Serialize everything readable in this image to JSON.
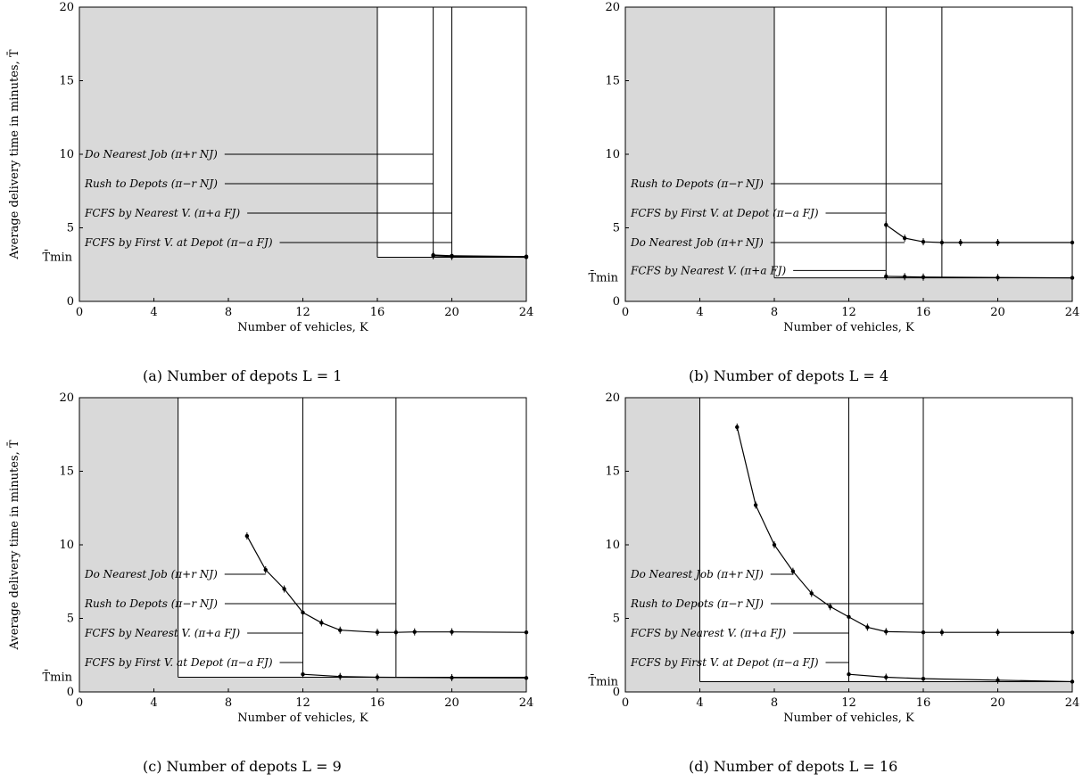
{
  "chart_data": [
    {
      "type": "line",
      "caption": "(a) Number of depots L = 1",
      "xlabel": "Number of vehicles, K",
      "ylabel": "Average delivery time in minutes, T̄",
      "tmin_label": "T̄min",
      "xlim": [
        0,
        24
      ],
      "ylim": [
        0,
        20
      ],
      "xticks": [
        "0",
        "4",
        "8",
        "12",
        "16",
        "20",
        "24"
      ],
      "yticks": [
        "0",
        "5",
        "10",
        "15",
        "20"
      ],
      "shaded_region": {
        "k_below": 16,
        "t_min": 3.0
      },
      "boundaries": [
        16,
        19,
        20
      ],
      "series": [
        {
          "x": [
            19,
            20,
            24
          ],
          "y": [
            3.15,
            3.1,
            3.05
          ]
        },
        {
          "x": [
            19,
            20,
            24
          ],
          "y": [
            3.1,
            3.05,
            3.0
          ]
        }
      ],
      "labels": [
        {
          "text": "Do Nearest Job (π+r NJ)",
          "y": 10.0,
          "to": 19
        },
        {
          "text": "Rush to Depots (π−r NJ)",
          "y": 8.0,
          "to": 19
        },
        {
          "text": "FCFS by Nearest V. (π+a FJ)",
          "y": 6.0,
          "to": 20
        },
        {
          "text": "FCFS by First V. at Depot (π−a FJ)",
          "y": 4.0,
          "to": 20
        }
      ]
    },
    {
      "type": "line",
      "caption": "(b) Number of depots L = 4",
      "xlabel": "Number of vehicles, K",
      "ylabel": "",
      "tmin_label": "T̄min",
      "xlim": [
        0,
        24
      ],
      "ylim": [
        0,
        20
      ],
      "xticks": [
        "0",
        "4",
        "8",
        "12",
        "16",
        "20",
        "24"
      ],
      "yticks": [
        "0",
        "5",
        "10",
        "15",
        "20"
      ],
      "shaded_region": {
        "k_below": 8,
        "t_min": 1.6
      },
      "boundaries": [
        8,
        14,
        17
      ],
      "series": [
        {
          "x": [
            14,
            15,
            16,
            17,
            18,
            20,
            24
          ],
          "y": [
            5.2,
            4.3,
            4.05,
            4.0,
            4.0,
            4.0,
            4.0
          ]
        },
        {
          "x": [
            14,
            15,
            16,
            20,
            24
          ],
          "y": [
            1.7,
            1.68,
            1.65,
            1.62,
            1.6
          ]
        }
      ],
      "labels": [
        {
          "text": "Rush to Depots (π−r NJ)",
          "y": 8.0,
          "to": 17
        },
        {
          "text": "FCFS by First V. at Depot (π−a FJ)",
          "y": 6.0,
          "to": 14
        },
        {
          "text": "Do Nearest Job (π+r NJ)",
          "y": 4.0,
          "to": 15
        },
        {
          "text": "FCFS by Nearest V. (π+a FJ)",
          "y": 2.1,
          "to": 14
        }
      ]
    },
    {
      "type": "line",
      "caption": "(c) Number of depots L = 9",
      "xlabel": "Number of vehicles, K",
      "ylabel": "Average delivery time in minutes, T̄",
      "tmin_label": "T̄min",
      "xlim": [
        0,
        24
      ],
      "ylim": [
        0,
        20
      ],
      "xticks": [
        "0",
        "4",
        "8",
        "12",
        "16",
        "20",
        "24"
      ],
      "yticks": [
        "0",
        "5",
        "10",
        "15",
        "20"
      ],
      "shaded_region": {
        "k_below": 5.3,
        "t_min": 1.0
      },
      "boundaries": [
        5.3,
        12,
        17
      ],
      "series": [
        {
          "x": [
            9,
            10,
            11,
            12,
            13,
            14,
            16,
            17,
            18,
            20,
            24
          ],
          "y": [
            10.6,
            8.3,
            7.0,
            5.4,
            4.7,
            4.2,
            4.05,
            4.05,
            4.08,
            4.08,
            4.05
          ]
        },
        {
          "x": [
            12,
            14,
            16,
            20,
            24
          ],
          "y": [
            1.2,
            1.05,
            1.0,
            0.97,
            0.95
          ]
        }
      ],
      "labels": [
        {
          "text": "Do Nearest Job (π+r NJ)",
          "y": 8.0,
          "to": 10
        },
        {
          "text": "Rush to Depots (π−r NJ)",
          "y": 6.0,
          "to": 17
        },
        {
          "text": "FCFS by Nearest V. (π+a FJ)",
          "y": 4.0,
          "to": 12
        },
        {
          "text": "FCFS by First V. at Depot (π−a FJ)",
          "y": 2.0,
          "to": 12
        }
      ]
    },
    {
      "type": "line",
      "caption": "(d) Number of depots L = 16",
      "xlabel": "Number of vehicles, K",
      "ylabel": "",
      "tmin_label": "T̄min",
      "xlim": [
        0,
        24
      ],
      "ylim": [
        0,
        20
      ],
      "xticks": [
        "0",
        "4",
        "8",
        "12",
        "16",
        "20",
        "24"
      ],
      "yticks": [
        "0",
        "5",
        "10",
        "15",
        "20"
      ],
      "shaded_region": {
        "k_below": 4,
        "t_min": 0.7
      },
      "boundaries": [
        4,
        12,
        16
      ],
      "series": [
        {
          "x": [
            6,
            7,
            8,
            9,
            10,
            11,
            12,
            13,
            14,
            16,
            17,
            20,
            24
          ],
          "y": [
            18.0,
            12.7,
            10.0,
            8.2,
            6.7,
            5.8,
            5.1,
            4.4,
            4.1,
            4.05,
            4.05,
            4.05,
            4.05
          ]
        },
        {
          "x": [
            12,
            14,
            16,
            20,
            24
          ],
          "y": [
            1.2,
            1.0,
            0.9,
            0.8,
            0.7
          ]
        }
      ],
      "labels": [
        {
          "text": "Do Nearest Job (π+r NJ)",
          "y": 8.0,
          "to": 9
        },
        {
          "text": "Rush to Depots (π−r NJ)",
          "y": 6.0,
          "to": 16
        },
        {
          "text": "FCFS by Nearest V. (π+a FJ)",
          "y": 4.0,
          "to": 12
        },
        {
          "text": "FCFS by First V. at Depot (π−a FJ)",
          "y": 2.0,
          "to": 12
        }
      ]
    }
  ]
}
